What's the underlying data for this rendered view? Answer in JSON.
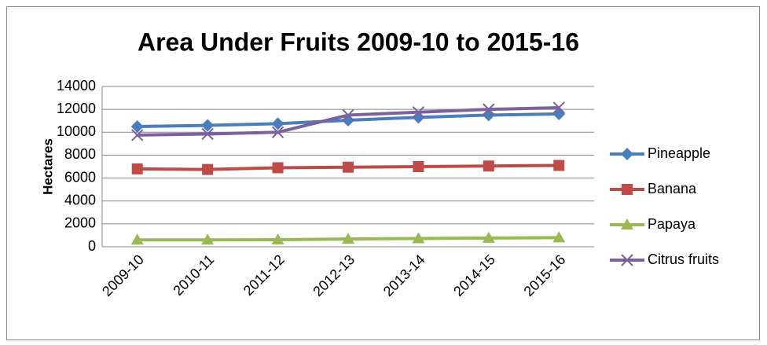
{
  "chart_data": {
    "type": "line",
    "title": "Area Under Fruits 2009-10 to 2015-16",
    "y_label": "Hectares",
    "categories": [
      "2009-10",
      "2010-11",
      "2011-12",
      "2012-13",
      "2013-14",
      "2014-15",
      "2015-16"
    ],
    "series": [
      {
        "name": "Pineapple",
        "color": "#4a7ebb",
        "marker": "diamond",
        "values": [
          10500,
          10600,
          10750,
          11050,
          11300,
          11500,
          11600
        ]
      },
      {
        "name": "Banana",
        "color": "#be4b48",
        "marker": "square",
        "values": [
          6800,
          6750,
          6900,
          6950,
          7000,
          7050,
          7100
        ]
      },
      {
        "name": "Papaya",
        "color": "#98b954",
        "marker": "triangle",
        "values": [
          600,
          600,
          620,
          680,
          720,
          760,
          800
        ]
      },
      {
        "name": "Citrus fruits",
        "color": "#7d60a0",
        "marker": "x",
        "values": [
          9750,
          9850,
          10000,
          11500,
          11750,
          12000,
          12150
        ]
      }
    ],
    "ylim": [
      0,
      14000
    ],
    "yticks": [
      0,
      2000,
      4000,
      6000,
      8000,
      10000,
      12000,
      14000
    ],
    "grid": true,
    "legend": "right"
  }
}
